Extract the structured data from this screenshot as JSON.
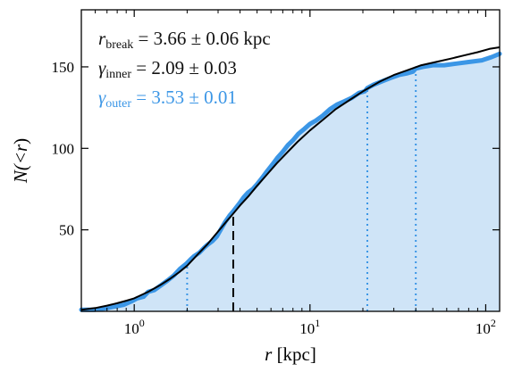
{
  "chart_data": {
    "type": "line",
    "title": "",
    "xlabel": {
      "var": "r",
      "unit": "[kpc]"
    },
    "ylabel": {
      "pre": "N(<",
      "var": "r",
      "post": ")"
    },
    "xscale": "log",
    "xlim": [
      0.5,
      120
    ],
    "ylim": [
      0,
      185
    ],
    "grid": false,
    "x_ticks": [
      {
        "value": 1,
        "base": "10",
        "exp": "0"
      },
      {
        "value": 10,
        "base": "10",
        "exp": "1"
      },
      {
        "value": 100,
        "base": "10",
        "exp": "2"
      }
    ],
    "y_ticks": [
      50,
      100,
      150
    ],
    "annotations": [
      {
        "var": "r",
        "sub": "break",
        "text": " = 3.66 ± 0.06 kpc",
        "color": "#111111"
      },
      {
        "var": "γ",
        "sub": "inner",
        "text": " = 2.09 ± 0.03",
        "color": "#111111"
      },
      {
        "var": "γ",
        "sub": "outer",
        "text": " = 3.53 ± 0.01",
        "color": "#3b96e6"
      }
    ],
    "series": [
      {
        "kind": "cumulative-data",
        "color": "#3b96e6",
        "fill": "#cfe4f7",
        "x": [
          0.5,
          0.6,
          0.7,
          0.78,
          0.87,
          0.96,
          1.04,
          1.13,
          1.2,
          1.3,
          1.42,
          1.55,
          1.68,
          1.82,
          1.97,
          2.1,
          2.2,
          2.35,
          2.5,
          2.62,
          2.78,
          2.95,
          3.1,
          3.3,
          3.5,
          3.7,
          3.95,
          4.2,
          4.45,
          4.72,
          5.0,
          5.35,
          5.7,
          6.1,
          6.5,
          7.0,
          7.5,
          8.0,
          8.6,
          9.3,
          10.0,
          10.8,
          11.8,
          13.0,
          14.3,
          15.8,
          17.3,
          19.0,
          20.5,
          21.2,
          23.0,
          25.5,
          28.5,
          32.0,
          35.5,
          38.5,
          40.0,
          44.0,
          50.0,
          58.0,
          68.0,
          80.0,
          95.0,
          108.0,
          120.0
        ],
        "y": [
          1,
          1,
          2,
          3,
          4,
          6,
          8,
          9,
          12,
          13,
          16,
          19,
          22,
          26,
          29,
          32,
          34,
          36,
          39,
          41,
          43,
          46,
          50,
          55,
          59,
          62,
          66,
          70,
          73,
          75,
          78,
          82,
          86,
          90,
          94,
          98,
          102,
          105,
          109,
          112,
          115,
          117,
          120,
          124,
          127,
          129,
          131,
          134,
          135,
          137,
          139,
          141,
          143,
          145,
          146,
          147,
          149,
          150,
          151,
          151,
          152,
          153,
          154,
          156,
          158
        ]
      },
      {
        "kind": "model-fit",
        "color": "#000000",
        "x": [
          0.5,
          0.6,
          0.7,
          0.8,
          0.9,
          1.0,
          1.2,
          1.4,
          1.6,
          1.8,
          2.0,
          2.3,
          2.6,
          3.0,
          3.4,
          3.66,
          4.0,
          4.5,
          5.0,
          5.7,
          6.5,
          7.5,
          8.5,
          10.0,
          12.0,
          14.0,
          17.0,
          20.0,
          25.0,
          30.0,
          36.0,
          43.0,
          52.0,
          63.0,
          75.0,
          90.0,
          105.0,
          120.0
        ],
        "y": [
          1.0,
          2.0,
          3.5,
          5.0,
          6.5,
          8.0,
          12.0,
          16.0,
          20.0,
          24.0,
          28.0,
          35.0,
          41.0,
          49.0,
          56.0,
          60.0,
          65.0,
          71.0,
          77.0,
          84.0,
          91.0,
          98.0,
          104.0,
          111.0,
          118.0,
          124.0,
          130.0,
          135.0,
          141.0,
          145.0,
          148.0,
          151.0,
          153.0,
          155.0,
          157.0,
          159.0,
          161.0,
          162.0
        ]
      }
    ],
    "vertical_lines": [
      {
        "x": 3.66,
        "style": "dashed",
        "color": "#000000"
      },
      {
        "x": 2.0,
        "style": "dotted",
        "color": "#3b96e6"
      },
      {
        "x": 21.2,
        "style": "dotted",
        "color": "#3b96e6"
      },
      {
        "x": 40.0,
        "style": "dotted",
        "color": "#3b96e6"
      }
    ]
  }
}
